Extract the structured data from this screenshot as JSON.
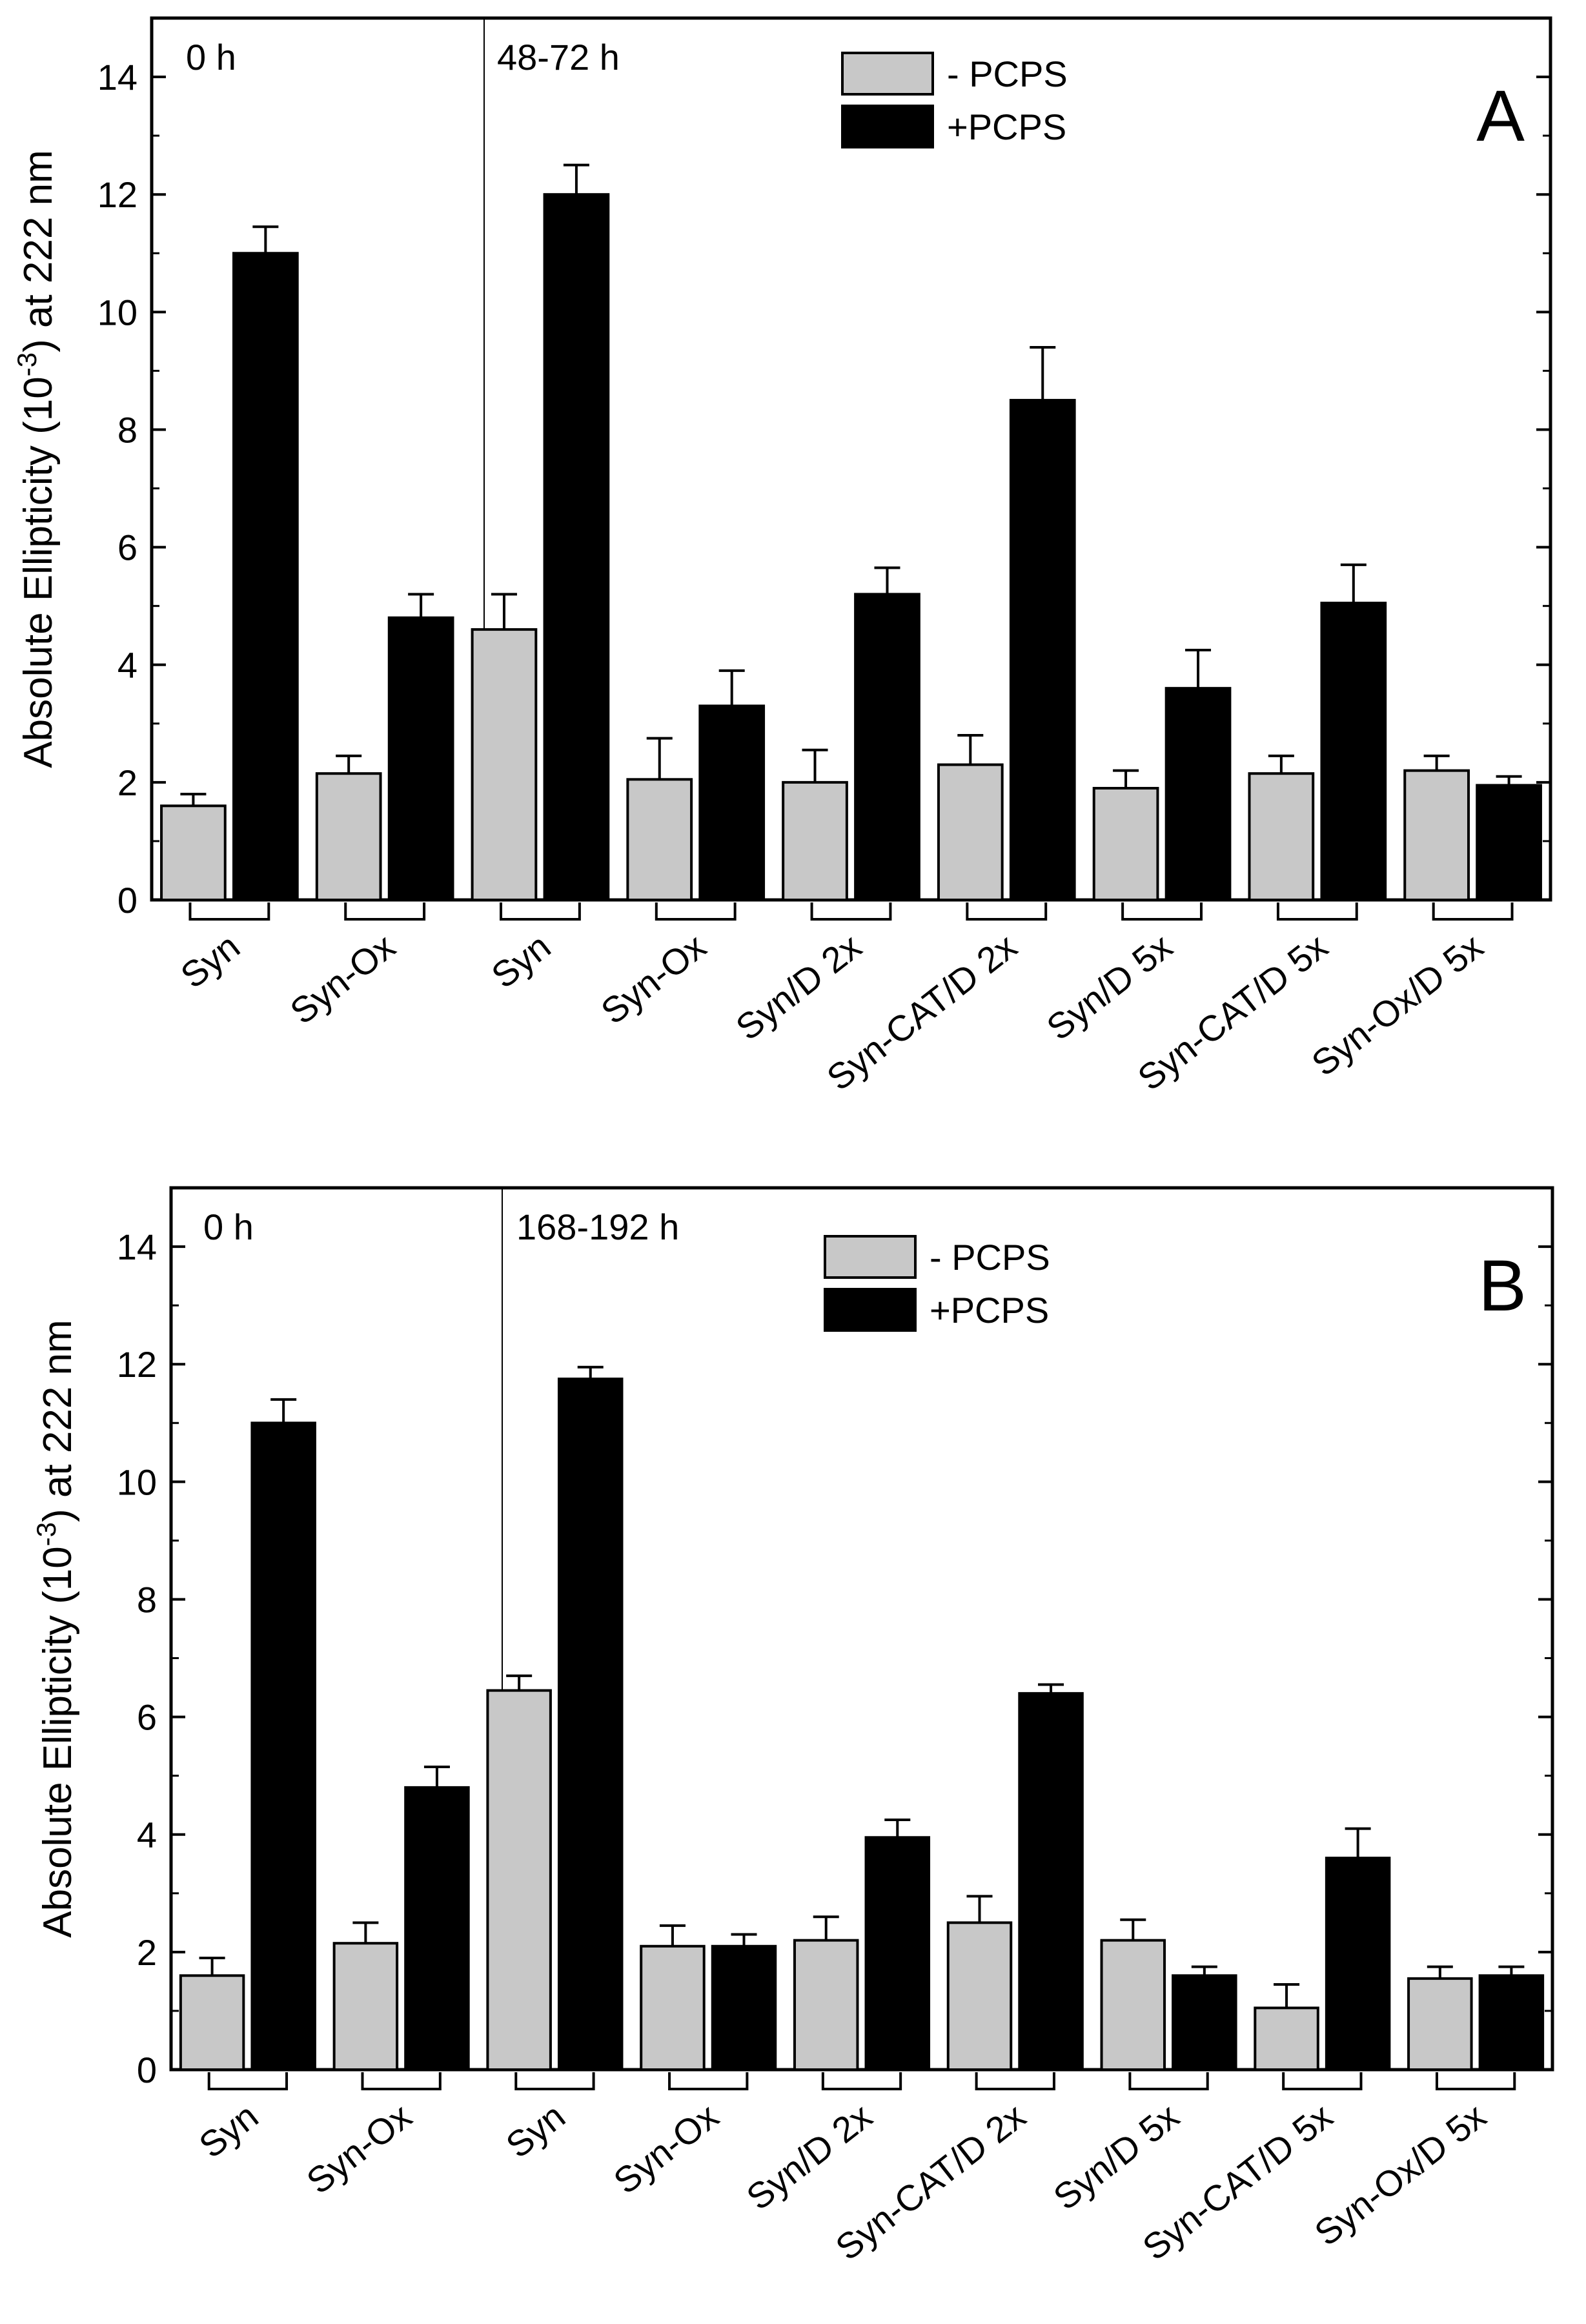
{
  "figure": {
    "colors": {
      "minus": "#c8c8c8",
      "plus": "#000000",
      "stroke": "#000000"
    }
  },
  "chart_data": [
    {
      "type": "bar",
      "panel": "A",
      "ylabel_main": "Absolute Ellipticity (10",
      "ylabel_exp": "-3",
      "ylabel_tail": ") at 222 nm",
      "ylim": [
        0,
        15
      ],
      "yticks": [
        0,
        2,
        4,
        6,
        8,
        10,
        12,
        14
      ],
      "time_labels": [
        "0 h",
        "48-72 h"
      ],
      "divider_after_index": 1,
      "legend": [
        "- PCPS",
        "+PCPS"
      ],
      "categories": [
        "Syn",
        "Syn-Ox",
        "Syn",
        "Syn-Ox",
        "Syn/D 2x",
        "Syn-CAT/D 2x",
        "Syn/D 5x",
        "Syn-CAT/D 5x",
        "Syn-Ox/D 5x"
      ],
      "series": [
        {
          "name": "- PCPS",
          "values": [
            1.6,
            2.15,
            4.6,
            2.05,
            2.0,
            2.3,
            1.9,
            2.15,
            2.2
          ],
          "errors": [
            0.2,
            0.3,
            0.6,
            0.7,
            0.55,
            0.5,
            0.3,
            0.3,
            0.25
          ]
        },
        {
          "name": "+PCPS",
          "values": [
            11.0,
            4.8,
            12.0,
            3.3,
            5.2,
            8.5,
            3.6,
            5.05,
            1.95
          ],
          "errors": [
            0.45,
            0.4,
            0.5,
            0.6,
            0.45,
            0.9,
            0.65,
            0.65,
            0.15
          ]
        }
      ]
    },
    {
      "type": "bar",
      "panel": "B",
      "ylabel_main": "Absolute Ellipticity (10",
      "ylabel_exp": "-3",
      "ylabel_tail": ") at 222 nm",
      "ylim": [
        0,
        15
      ],
      "yticks": [
        0,
        2,
        4,
        6,
        8,
        10,
        12,
        14
      ],
      "time_labels": [
        "0 h",
        "168-192 h"
      ],
      "divider_after_index": 1,
      "legend": [
        "- PCPS",
        "+PCPS"
      ],
      "categories": [
        "Syn",
        "Syn-Ox",
        "Syn",
        "Syn-Ox",
        "Syn/D 2x",
        "Syn-CAT/D 2x",
        "Syn/D 5x",
        "Syn-CAT/D 5x",
        "Syn-Ox/D 5x"
      ],
      "series": [
        {
          "name": "- PCPS",
          "values": [
            1.6,
            2.15,
            6.45,
            2.1,
            2.2,
            2.5,
            2.2,
            1.05,
            1.55
          ],
          "errors": [
            0.3,
            0.35,
            0.25,
            0.35,
            0.4,
            0.45,
            0.35,
            0.4,
            0.2
          ]
        },
        {
          "name": "+PCPS",
          "values": [
            11.0,
            4.8,
            11.75,
            2.1,
            3.95,
            6.4,
            1.6,
            3.6,
            1.6
          ],
          "errors": [
            0.4,
            0.35,
            0.2,
            0.2,
            0.3,
            0.15,
            0.15,
            0.5,
            0.15
          ]
        }
      ]
    }
  ]
}
